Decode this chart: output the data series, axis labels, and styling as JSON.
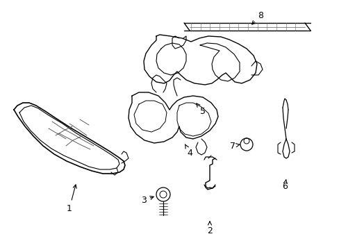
{
  "background_color": "#ffffff",
  "line_color": "#000000",
  "line_width": 1.0,
  "label_fontsize": 9,
  "figsize": [
    4.89,
    3.6
  ],
  "dpi": 100,
  "xlim": [
    0,
    489
  ],
  "ylim": [
    0,
    360
  ]
}
